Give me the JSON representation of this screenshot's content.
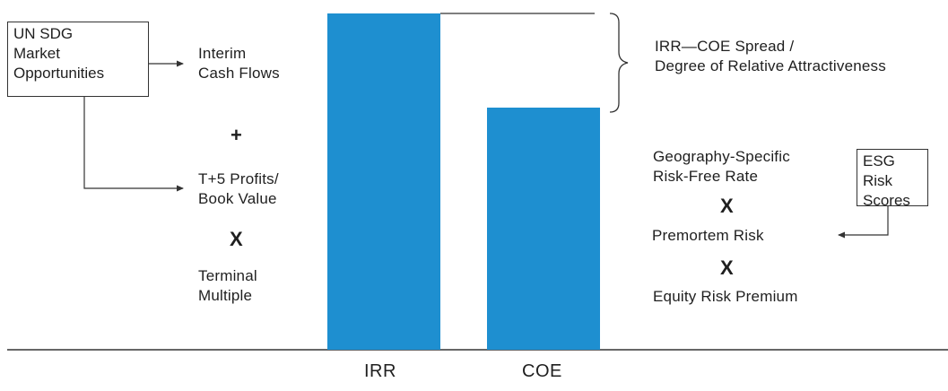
{
  "colors": {
    "bar": "#1e8fd0",
    "line": "#333333"
  },
  "boxes": {
    "un_sdg": "UN SDG\nMarket\nOpportunities",
    "esg": "ESG Risk\nScores"
  },
  "left": {
    "interim": "Interim\nCash Flows",
    "plus": "+",
    "profits": "T+5 Profits/\nBook Value",
    "times": "X",
    "terminal": "Terminal\nMultiple"
  },
  "right": {
    "spread": "IRR—COE Spread /\nDegree of Relative Attractiveness",
    "rfr": "Geography-Specific\nRisk-Free Rate",
    "times1": "X",
    "premortem": "Premortem Risk",
    "times2": "X",
    "erp": "Equity Risk Premium"
  },
  "chart_data": {
    "type": "bar",
    "categories": [
      "IRR",
      "COE"
    ],
    "values": [
      100,
      72
    ]
  }
}
